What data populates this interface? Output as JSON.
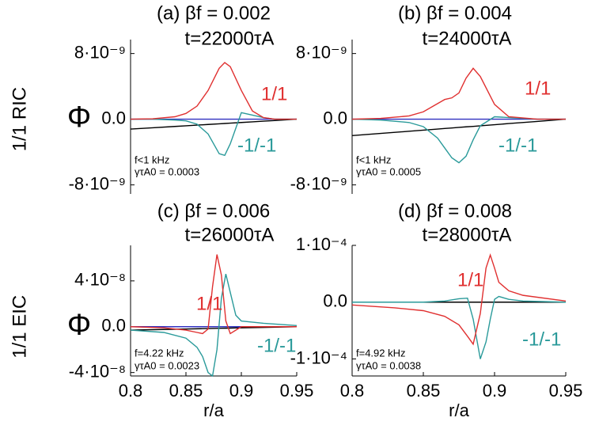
{
  "chart_data": [
    {
      "type": "line",
      "title": "(a) βf = 0.002",
      "subtitle": "t=22000τA",
      "ylabel": "Φ",
      "row_label": "1/1 RIC",
      "annotations": [
        "f<1 kHz",
        "γτA0 = 0.0003"
      ],
      "xlim": [
        0.8,
        0.95
      ],
      "ylim": [
        -9.1e-09,
        9.7e-09
      ],
      "yticks": [
        {
          "value": 8e-09,
          "label": "8·10⁻⁹"
        },
        {
          "value": 0,
          "label": "0.0"
        },
        {
          "value": -8e-09,
          "label": "-8·10⁻⁹"
        }
      ],
      "x": [
        0.8,
        0.82,
        0.84,
        0.85,
        0.86,
        0.87,
        0.88,
        0.885,
        0.89,
        0.9,
        0.91,
        0.92,
        0.93,
        0.95
      ],
      "series": [
        {
          "name": "1/1",
          "color": "#e03030",
          "values": [
            0,
            5e-11,
            3e-10,
            7e-10,
            1.6e-09,
            3.5e-09,
            6.2e-09,
            6.9e-09,
            6.4e-09,
            3.5e-09,
            1e-09,
            2e-10,
            0,
            0
          ]
        },
        {
          "name": "-1/-1",
          "color": "#2a9a9a",
          "values": [
            0,
            0,
            -1e-10,
            -2e-10,
            -6e-10,
            -1.8e-09,
            -4.2e-09,
            -4.4e-09,
            -3e-09,
            8e-10,
            5e-10,
            2e-10,
            0,
            0
          ]
        },
        {
          "color": "#000000",
          "values": [
            -1.2e-09,
            -1.04e-09,
            -8.8e-10,
            -8e-10,
            -7.2e-10,
            -6.4e-10,
            -5.6e-10,
            -5.2e-10,
            -4.8e-10,
            -4e-10,
            -3.2e-10,
            -2.4e-10,
            -1.6e-10,
            0
          ]
        },
        {
          "color": "#3030c0",
          "values": [
            0,
            0,
            0,
            0,
            0,
            0,
            0,
            0,
            0,
            0,
            0,
            0,
            0,
            0
          ]
        }
      ]
    },
    {
      "type": "line",
      "title": "(b) βf = 0.004",
      "subtitle": "t=24000τA",
      "annotations": [
        "f<1 kHz",
        "γτA0 = 0.0005"
      ],
      "xlim": [
        0.8,
        0.95
      ],
      "ylim": [
        -9.1e-09,
        9.7e-09
      ],
      "yticks": [
        {
          "value": 8e-09,
          "label": "8·10⁻⁹"
        },
        {
          "value": 0,
          "label": "0.0"
        },
        {
          "value": -8e-09,
          "label": "-8·10⁻⁹"
        }
      ],
      "x": [
        0.8,
        0.82,
        0.84,
        0.85,
        0.86,
        0.865,
        0.87,
        0.875,
        0.88,
        0.885,
        0.89,
        0.9,
        0.91,
        0.93,
        0.95
      ],
      "series": [
        {
          "name": "1/1",
          "color": "#e03030",
          "values": [
            0,
            1e-10,
            4e-10,
            9e-10,
            1.9e-09,
            2.4e-09,
            2.6e-09,
            3.2e-09,
            5e-09,
            6.2e-09,
            5.2e-09,
            1.8e-09,
            3e-10,
            0,
            0
          ]
        },
        {
          "name": "-1/-1",
          "color": "#2a9a9a",
          "values": [
            0,
            -1e-10,
            -4e-10,
            -9e-10,
            -2.3e-09,
            -3.5e-09,
            -4.7e-09,
            -5.3e-09,
            -4.5e-09,
            -2.5e-09,
            -8e-10,
            3e-10,
            2e-10,
            0,
            0
          ]
        },
        {
          "color": "#000000",
          "values": [
            -2e-09,
            -1.73e-09,
            -1.47e-09,
            -1.33e-09,
            -1.2e-09,
            -1.13e-09,
            -1.07e-09,
            -1e-09,
            -9.3e-10,
            -8.7e-10,
            -8e-10,
            -6.7e-10,
            -5.3e-10,
            -2.7e-10,
            0
          ]
        },
        {
          "color": "#3030c0",
          "values": [
            0,
            0,
            0,
            0,
            0,
            0,
            0,
            0,
            0,
            0,
            0,
            0,
            0,
            0,
            0
          ]
        }
      ]
    },
    {
      "type": "line",
      "title": "(c) βf = 0.006",
      "subtitle": "t=26000τA",
      "ylabel": "Φ",
      "row_label": "1/1 EIC",
      "xlabel": "r/a",
      "annotations": [
        "f=4.22 kHz",
        "γτA0 = 0.0023"
      ],
      "xlim": [
        0.8,
        0.95
      ],
      "ylim": [
        -4.3e-08,
        7.1e-08
      ],
      "xticks": [
        0.8,
        0.85,
        0.9,
        0.95
      ],
      "yticks": [
        {
          "value": 4e-08,
          "label": "4·10⁻⁸"
        },
        {
          "value": 0,
          "label": "0.0"
        },
        {
          "value": -4e-08,
          "label": "-4·10⁻⁸"
        }
      ],
      "x": [
        0.8,
        0.83,
        0.85,
        0.86,
        0.865,
        0.87,
        0.874,
        0.878,
        0.882,
        0.886,
        0.89,
        0.895,
        0.9,
        0.92,
        0.95
      ],
      "series": [
        {
          "name": "1/1",
          "color": "#e03030",
          "values": [
            0,
            -1e-09,
            -3e-09,
            -5e-09,
            -6e-09,
            -2e-09,
            3.5e-08,
            6.3e-08,
            4.5e-08,
            5e-09,
            -6e-09,
            -3e-09,
            0,
            0,
            0
          ]
        },
        {
          "name": "-1/-1",
          "color": "#2a9a9a",
          "values": [
            -3e-09,
            -5e-09,
            -1e-08,
            -1.8e-08,
            -2.6e-08,
            -4e-08,
            -4.3e-08,
            -2e-08,
            2.5e-08,
            4.6e-08,
            3e-08,
            1e-08,
            5e-09,
            3e-09,
            1e-09
          ]
        },
        {
          "color": "#000000",
          "values": [
            -3e-09,
            -2.4e-09,
            -2e-09,
            -1.8e-09,
            -1.7e-09,
            -1.6e-09,
            -1.52e-09,
            -1.44e-09,
            -1.36e-09,
            -1.28e-09,
            -1.2e-09,
            -1.1e-09,
            -1e-09,
            -6e-10,
            0
          ]
        },
        {
          "color": "#3030c0",
          "values": [
            0,
            0,
            0,
            0,
            0,
            0,
            0,
            0,
            0,
            0,
            0,
            0,
            0,
            0,
            0
          ]
        }
      ]
    },
    {
      "type": "line",
      "title": "(d) βf = 0.008",
      "subtitle": "t=28000τA",
      "xlabel": "r/a",
      "annotations": [
        "f=4.92 kHz",
        "γτA0 = 0.0038"
      ],
      "xlim": [
        0.8,
        0.95
      ],
      "ylim": [
        -0.00013,
        0.0001
      ],
      "xticks": [
        0.8,
        0.85,
        0.9,
        0.95
      ],
      "yticks": [
        {
          "value": 0.0001,
          "label": "1·10⁻⁴"
        },
        {
          "value": 0,
          "label": "0.0"
        },
        {
          "value": -0.0001,
          "label": "-1·10⁻⁴"
        }
      ],
      "x": [
        0.8,
        0.83,
        0.85,
        0.865,
        0.875,
        0.881,
        0.885,
        0.89,
        0.894,
        0.897,
        0.9,
        0.903,
        0.91,
        0.92,
        0.95
      ],
      "series": [
        {
          "name": "1/1",
          "color": "#e03030",
          "values": [
            -5e-06,
            -1e-05,
            -1.5e-05,
            -2.5e-05,
            -4e-05,
            -6e-05,
            -7.4e-05,
            -2e-05,
            6e-05,
            8.3e-05,
            6e-05,
            3.5e-05,
            2e-05,
            1.2e-05,
            2e-06
          ]
        },
        {
          "name": "-1/-1",
          "color": "#2a9a9a",
          "values": [
            0,
            0,
            0,
            2e-06,
            6e-06,
            7e-06,
            -3e-05,
            -0.0001,
            -7e-05,
            -3e-05,
            5e-06,
            1e-05,
            5e-06,
            2e-06,
            0
          ]
        },
        {
          "color": "#000000",
          "values": [
            0,
            0,
            0,
            0,
            0,
            0,
            0,
            0,
            0,
            0,
            0,
            0,
            0,
            0,
            0
          ]
        },
        {
          "color": "#3030c0",
          "values": [
            0,
            0,
            0,
            0,
            0,
            0,
            0,
            0,
            0,
            0,
            0,
            0,
            0,
            0,
            0
          ]
        }
      ]
    }
  ]
}
